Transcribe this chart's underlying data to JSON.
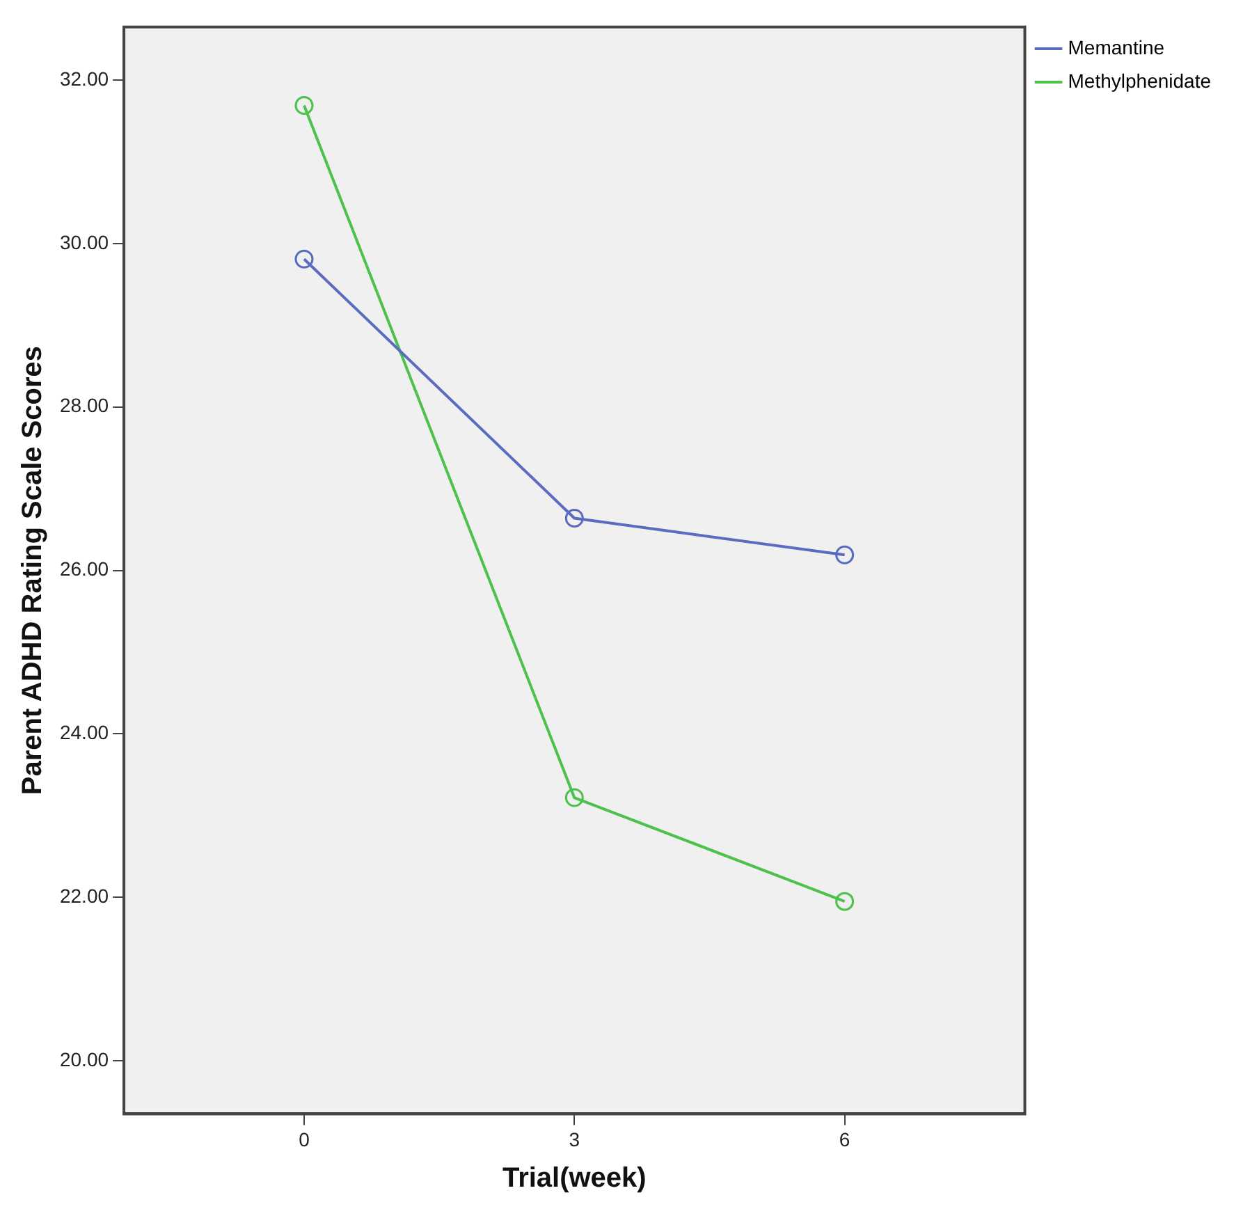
{
  "chart_data": {
    "type": "line",
    "xlabel": "Trial(week)",
    "ylabel": "Parent ADHD Rating Scale Scores",
    "x": [
      0,
      3,
      6
    ],
    "series": [
      {
        "name": "Memantine",
        "color": "#5a6bc0",
        "values": [
          29.81,
          26.64,
          26.19
        ]
      },
      {
        "name": "Methylphenidate",
        "color": "#4cc24c",
        "values": [
          31.69,
          23.22,
          21.95
        ]
      }
    ],
    "xlim": [
      -2,
      8
    ],
    "xticks": [
      0,
      3,
      6
    ],
    "ylim": [
      19.35,
      32.65
    ],
    "yticks": [
      {
        "value": 20,
        "label": "20.00"
      },
      {
        "value": 22,
        "label": "22.00"
      },
      {
        "value": 24,
        "label": "24.00"
      },
      {
        "value": 26,
        "label": "26.00"
      },
      {
        "value": 28,
        "label": "28.00"
      },
      {
        "value": 30,
        "label": "30.00"
      },
      {
        "value": 32,
        "label": "32.00"
      }
    ],
    "grid": false,
    "legend": "top right",
    "marker": "circle",
    "line_style": "solid"
  }
}
